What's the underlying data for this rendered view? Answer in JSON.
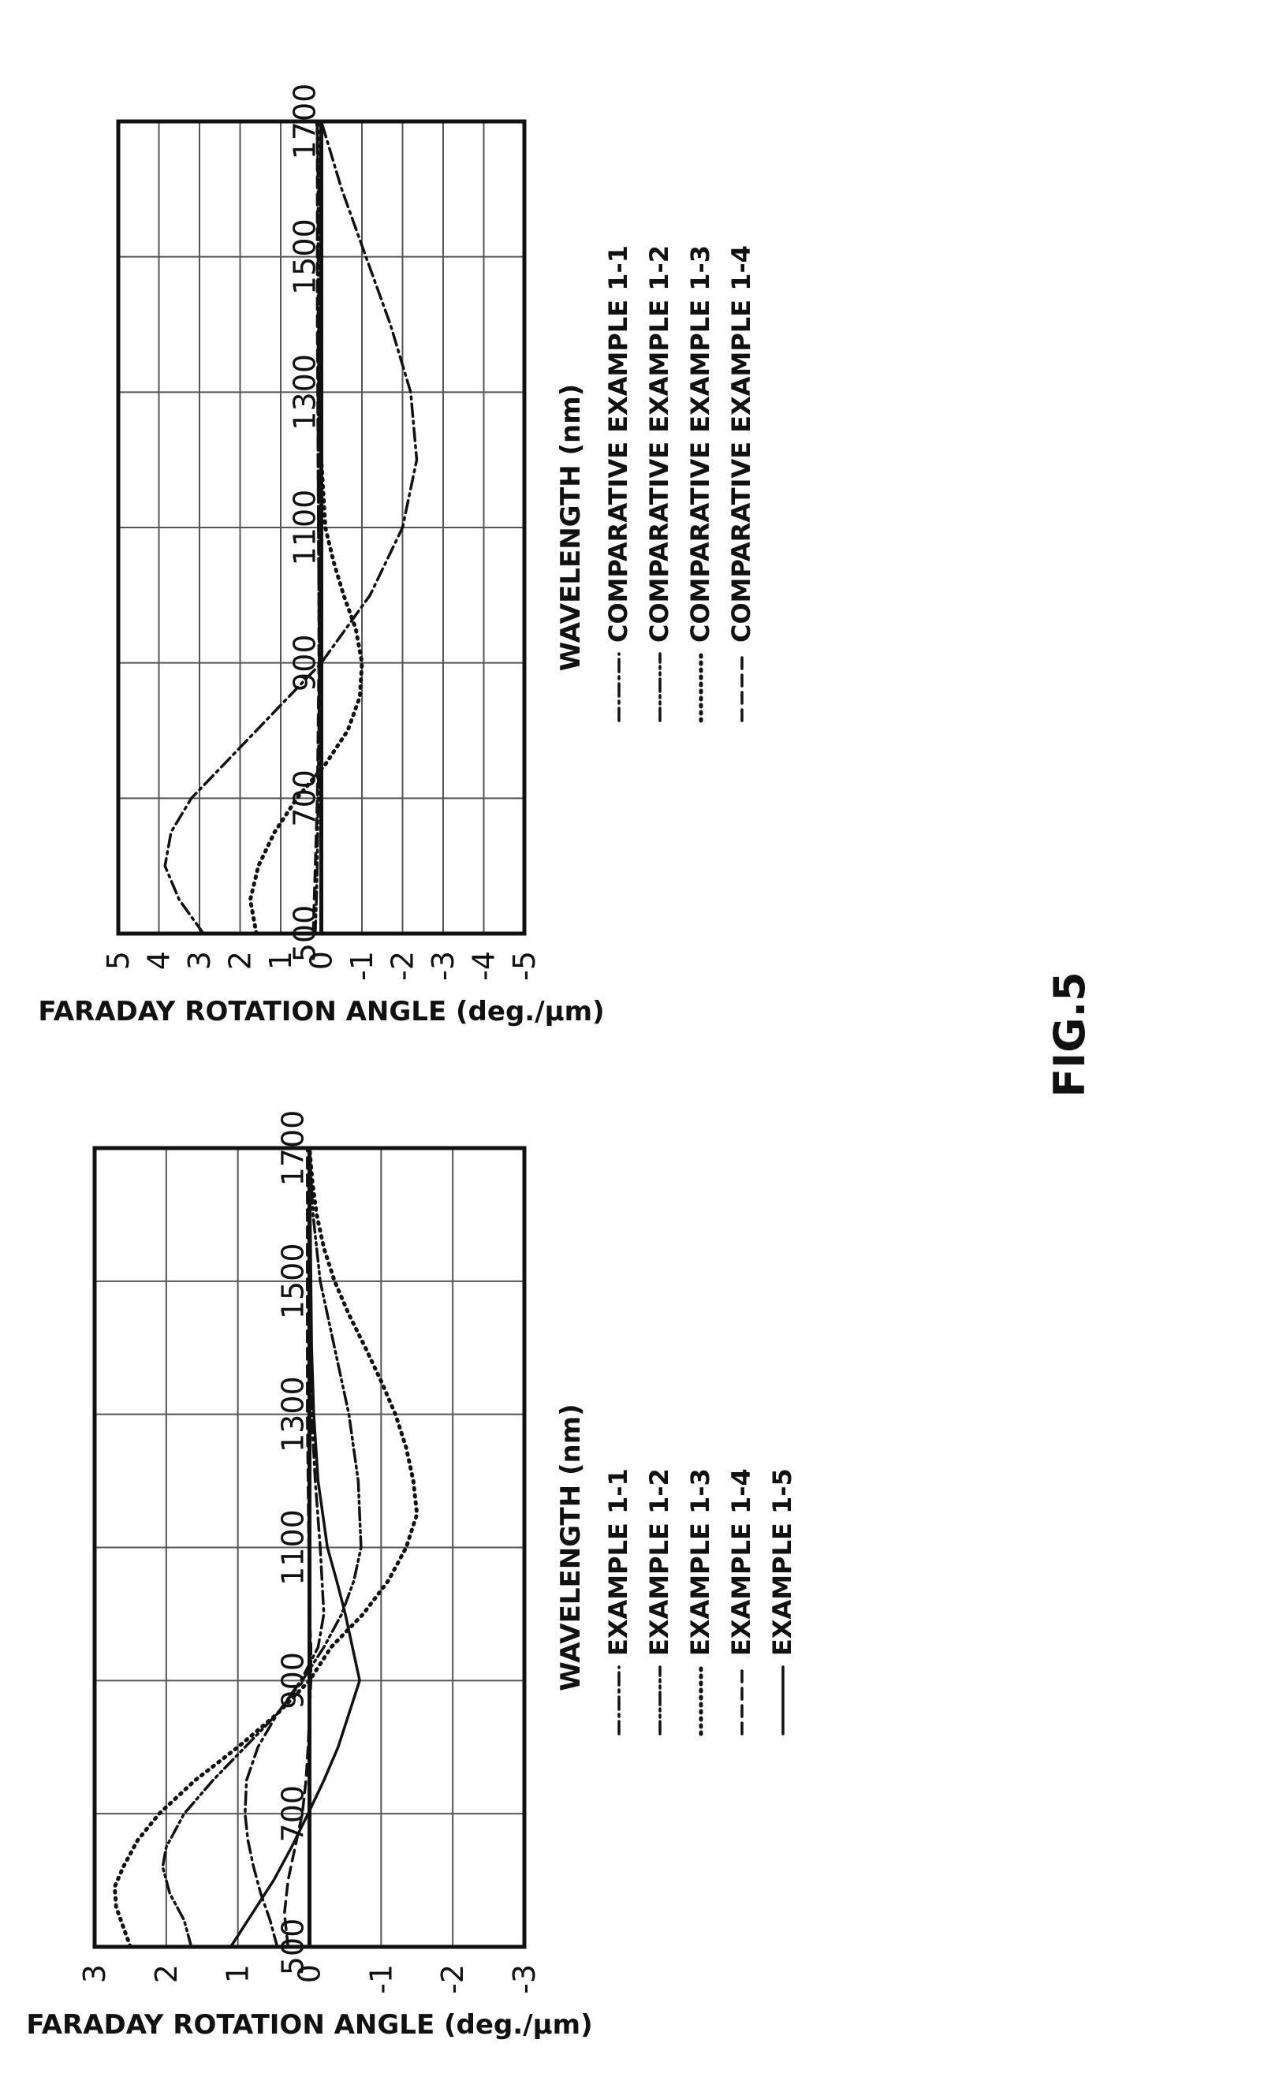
{
  "figure": {
    "title": "FIG.5"
  },
  "chart_data": [
    {
      "type": "line",
      "xlabel": "WAVELENGTH (nm)",
      "ylabel": "FARADAY ROTATION ANGLE (deg./μm)",
      "xlim": [
        500,
        1700
      ],
      "ylim": [
        -3,
        3
      ],
      "x_ticks": [
        "500",
        "700",
        "900",
        "1100",
        "1300",
        "1500",
        "1700"
      ],
      "y_ticks": [
        "3",
        "2",
        "1",
        "0",
        "-1",
        "-2",
        "-3"
      ],
      "grid": true,
      "legend_position": "right",
      "series": [
        {
          "name": "EXAMPLE 1-1",
          "style": "dashdot",
          "x": [
            500,
            540,
            580,
            620,
            660,
            700,
            750,
            800,
            850,
            900,
            950,
            1000,
            1100,
            1200,
            1300,
            1400,
            1500,
            1600,
            1700
          ],
          "y": [
            0.45,
            0.55,
            0.68,
            0.78,
            0.86,
            0.9,
            0.88,
            0.72,
            0.45,
            0.12,
            -0.12,
            -0.2,
            -0.15,
            -0.08,
            -0.03,
            0.0,
            0.0,
            0.0,
            0.0
          ]
        },
        {
          "name": "EXAMPLE 1-2",
          "style": "dashdotdot",
          "x": [
            500,
            540,
            580,
            620,
            650,
            700,
            750,
            800,
            850,
            900,
            950,
            1000,
            1050,
            1100,
            1200,
            1300,
            1400,
            1500,
            1600,
            1700
          ],
          "y": [
            1.65,
            1.75,
            1.95,
            2.05,
            2.0,
            1.75,
            1.35,
            0.9,
            0.45,
            0.1,
            -0.2,
            -0.45,
            -0.62,
            -0.72,
            -0.68,
            -0.55,
            -0.35,
            -0.15,
            -0.05,
            0.0
          ]
        },
        {
          "name": "EXAMPLE 1-3",
          "style": "dotted",
          "x": [
            500,
            530,
            560,
            590,
            620,
            660,
            700,
            750,
            800,
            850,
            900,
            950,
            1000,
            1050,
            1100,
            1150,
            1200,
            1250,
            1300,
            1350,
            1400,
            1450,
            1500,
            1550,
            1600,
            1650,
            1700
          ],
          "y": [
            2.5,
            2.6,
            2.7,
            2.72,
            2.6,
            2.4,
            2.1,
            1.6,
            1.0,
            0.45,
            0.0,
            -0.3,
            -0.75,
            -1.1,
            -1.35,
            -1.5,
            -1.45,
            -1.35,
            -1.2,
            -1.0,
            -0.78,
            -0.55,
            -0.35,
            -0.2,
            -0.1,
            -0.04,
            0.0
          ]
        },
        {
          "name": "EXAMPLE 1-4",
          "style": "dashed",
          "x": [
            500,
            550,
            600,
            650,
            700,
            750,
            800,
            850,
            900,
            950,
            1000,
            1100,
            1200,
            1300,
            1400,
            1500,
            1600,
            1700
          ],
          "y": [
            0.3,
            0.35,
            0.3,
            0.2,
            0.1,
            0.05,
            0.02,
            0.0,
            -0.02,
            -0.02,
            0.0,
            0.01,
            0.02,
            0.03,
            0.03,
            0.03,
            0.03,
            0.03
          ]
        },
        {
          "name": "EXAMPLE 1-5",
          "style": "solid",
          "x": [
            500,
            550,
            600,
            650,
            700,
            750,
            800,
            850,
            900,
            950,
            1000,
            1050,
            1100,
            1200,
            1300,
            1400,
            1500,
            1600,
            1700
          ],
          "y": [
            1.1,
            0.8,
            0.5,
            0.25,
            0.02,
            -0.2,
            -0.4,
            -0.55,
            -0.7,
            -0.6,
            -0.5,
            -0.38,
            -0.25,
            -0.12,
            -0.06,
            -0.03,
            -0.02,
            -0.01,
            0.0
          ]
        }
      ]
    },
    {
      "type": "line",
      "xlabel": "WAVELENGTH (nm)",
      "ylabel": "FARADAY ROTATION ANGLE (deg./μm)",
      "xlim": [
        500,
        1700
      ],
      "ylim": [
        -5,
        5
      ],
      "x_ticks": [
        "500",
        "700",
        "900",
        "1100",
        "1300",
        "1500",
        "1700"
      ],
      "y_ticks": [
        "5",
        "4",
        "3",
        "2",
        "1",
        "0",
        "-1",
        "-2",
        "-3",
        "-4",
        "-5"
      ],
      "grid": true,
      "legend_position": "right",
      "series": [
        {
          "name": "COMPARATIVE EXAMPLE 1-1",
          "style": "dashdot",
          "x": [
            500,
            550,
            600,
            650,
            700,
            750,
            800,
            850,
            900,
            950,
            1000,
            1100,
            1200,
            1300,
            1400,
            1500,
            1600,
            1700
          ],
          "y": [
            2.9,
            3.5,
            3.85,
            3.7,
            3.2,
            2.4,
            1.6,
            0.8,
            0.0,
            -0.6,
            -1.2,
            -2.0,
            -2.35,
            -2.2,
            -1.7,
            -1.1,
            -0.5,
            0.0
          ]
        },
        {
          "name": "COMPARATIVE EXAMPLE 1-2",
          "style": "dashdotdot",
          "x": [
            500,
            550,
            600,
            700,
            800,
            900,
            1000,
            1100,
            1200,
            1300,
            1400,
            1500,
            1600,
            1700
          ],
          "y": [
            0.15,
            0.12,
            0.1,
            0.08,
            0.06,
            0.05,
            0.06,
            0.07,
            0.08,
            0.08,
            0.08,
            0.08,
            0.08,
            0.1
          ]
        },
        {
          "name": "COMPARATIVE EXAMPLE 1-3",
          "style": "dotted",
          "x": [
            500,
            550,
            600,
            650,
            700,
            750,
            800,
            850,
            900,
            950,
            1000,
            1050,
            1100,
            1200,
            1300,
            1400,
            1500,
            1600,
            1700
          ],
          "y": [
            1.6,
            1.75,
            1.55,
            1.15,
            0.6,
            -0.1,
            -0.65,
            -0.95,
            -1.0,
            -0.85,
            -0.55,
            -0.3,
            -0.1,
            0.0,
            0.05,
            0.05,
            0.05,
            0.05,
            0.1
          ]
        },
        {
          "name": "COMPARATIVE EXAMPLE 1-4",
          "style": "dashed",
          "x": [
            500,
            600,
            700,
            800,
            900,
            1000,
            1100,
            1200,
            1300,
            1400,
            1500,
            1600,
            1700
          ],
          "y": [
            0.2,
            0.15,
            0.1,
            0.08,
            0.06,
            0.06,
            0.07,
            0.08,
            0.09,
            0.1,
            0.1,
            0.1,
            0.1
          ]
        }
      ]
    }
  ]
}
